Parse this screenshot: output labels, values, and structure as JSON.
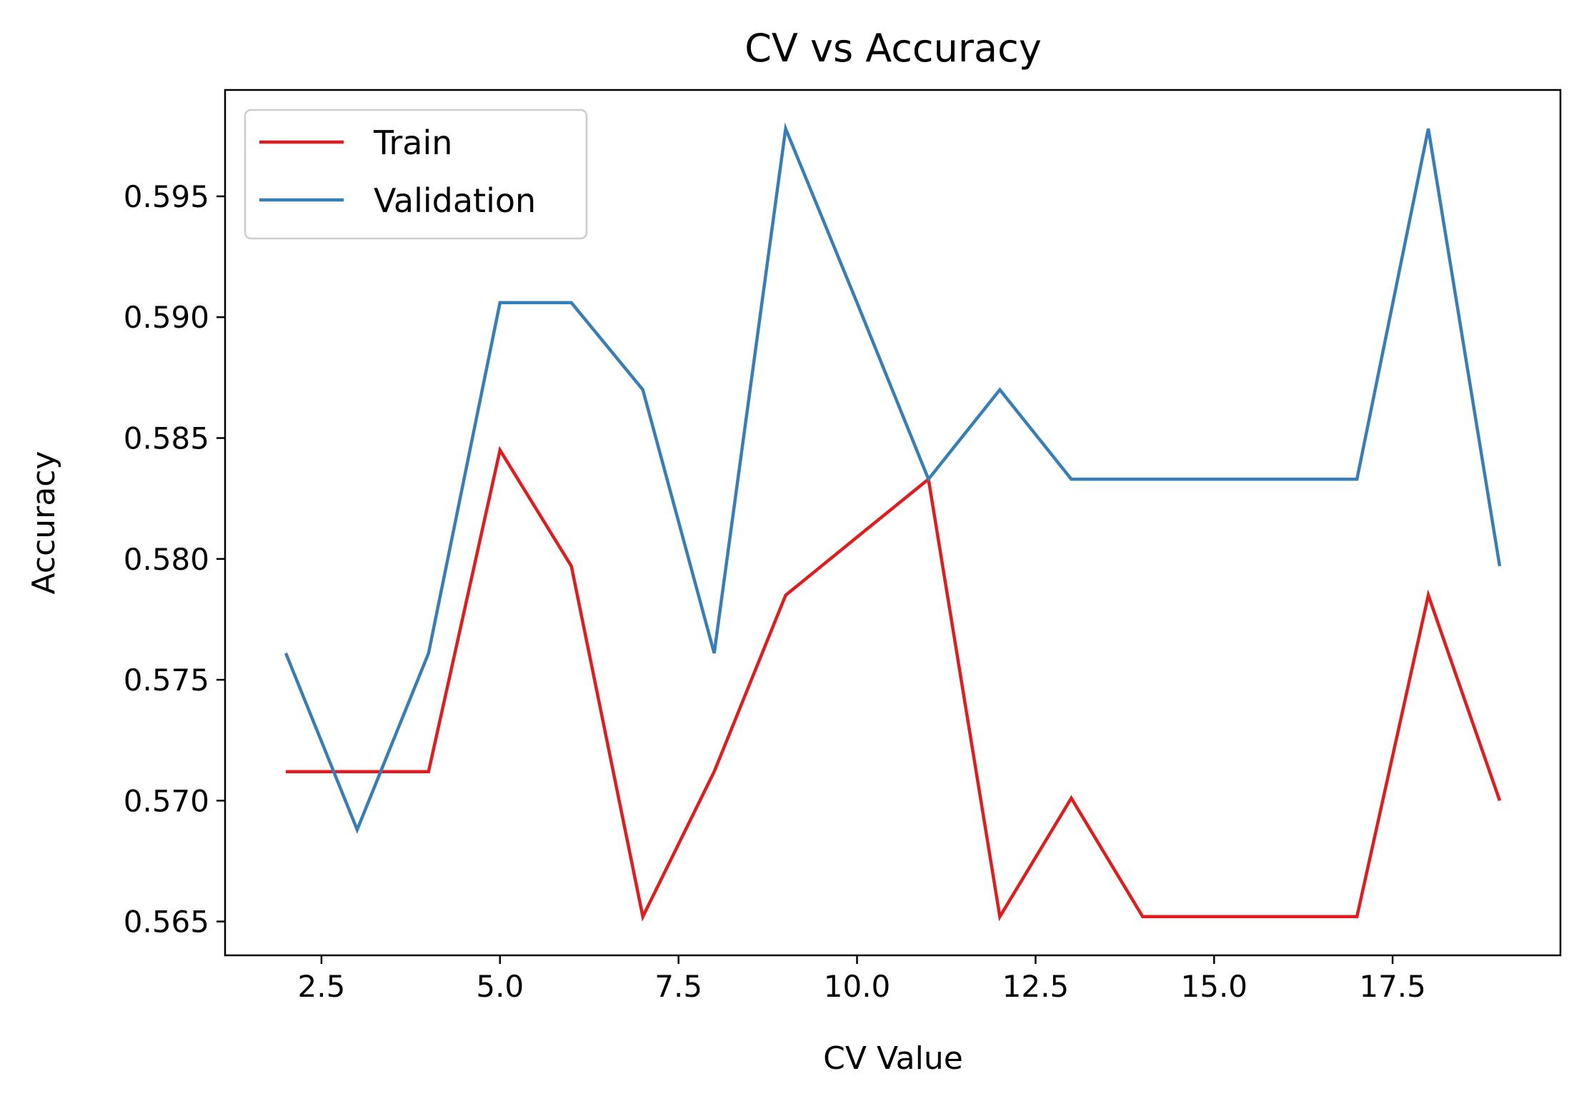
{
  "chart_data": {
    "type": "line",
    "title": "CV vs Accuracy",
    "xlabel": "CV Value",
    "ylabel": "Accuracy",
    "x": [
      2,
      3,
      4,
      5,
      6,
      7,
      8,
      9,
      10,
      11,
      12,
      13,
      14,
      15,
      16,
      17,
      18,
      19
    ],
    "series": [
      {
        "name": "Train",
        "color": "#e41a1c",
        "values": [
          0.5712,
          0.5712,
          0.5712,
          0.5845,
          0.5797,
          0.5652,
          0.5712,
          0.5785,
          0.5809,
          0.5833,
          0.5652,
          0.5701,
          0.5652,
          0.5652,
          0.5652,
          0.5652,
          0.5785,
          0.57
        ]
      },
      {
        "name": "Validation",
        "color": "#377eb8",
        "values": [
          0.5761,
          0.5688,
          0.5761,
          0.5906,
          0.5906,
          0.587,
          0.5761,
          0.5978,
          0.5906,
          0.5833,
          0.587,
          0.5833,
          0.5833,
          0.5833,
          0.5833,
          0.5833,
          0.5978,
          0.5797
        ]
      }
    ],
    "xlim": [
      1.15,
      19.85
    ],
    "ylim": [
      0.5636,
      0.5994
    ],
    "xticks": [
      2.5,
      5.0,
      7.5,
      10.0,
      12.5,
      15.0,
      17.5
    ],
    "xtick_labels": [
      "2.5",
      "5.0",
      "7.5",
      "10.0",
      "12.5",
      "15.0",
      "17.5"
    ],
    "yticks": [
      0.565,
      0.57,
      0.575,
      0.58,
      0.585,
      0.59,
      0.595
    ],
    "ytick_labels": [
      "0.565",
      "0.570",
      "0.575",
      "0.580",
      "0.585",
      "0.590",
      "0.595"
    ],
    "grid": false,
    "legend_position": "top-left"
  }
}
